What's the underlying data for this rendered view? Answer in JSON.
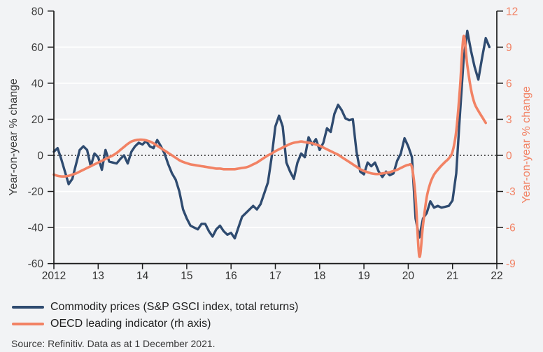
{
  "figure": {
    "background_color": "#f2f3f5",
    "grid_color": "#ffffff",
    "axis_color": "#1b1b1b",
    "x_tick_text_color": "#333333",
    "source_note": "Source: Refinitiv. Data as at 1 December 2021."
  },
  "legend": {
    "items": [
      {
        "label": "Commodity prices (S&P GSCI index, total returns)",
        "color": "#2f4b70"
      },
      {
        "label": "OECD leading indicator (rh axis)",
        "color": "#f28264"
      }
    ]
  },
  "chart_data": {
    "type": "line",
    "x_axis": {
      "range": [
        2012,
        2022
      ],
      "ticks": [
        {
          "label": "2012",
          "year": 2012
        },
        {
          "label": "13",
          "year": 2013
        },
        {
          "label": "14",
          "year": 2014
        },
        {
          "label": "15",
          "year": 2015
        },
        {
          "label": "16",
          "year": 2016
        },
        {
          "label": "17",
          "year": 2017
        },
        {
          "label": "18",
          "year": 2018
        },
        {
          "label": "19",
          "year": 2019
        },
        {
          "label": "20",
          "year": 2020
        },
        {
          "label": "21",
          "year": 2021
        },
        {
          "label": "22",
          "year": 2022
        }
      ]
    },
    "left_axis": {
      "label": "Year-on-year % change",
      "color": "#3b3b3b",
      "ticks": [
        80,
        60,
        40,
        20,
        0,
        -20,
        -40,
        -60
      ],
      "gridlines": [
        60,
        40,
        20,
        -20,
        -40
      ],
      "range": [
        -60,
        80
      ]
    },
    "right_axis": {
      "label": "Year-on-year % change",
      "color": "#f28264",
      "ticks": [
        12,
        9,
        6,
        3,
        0,
        -3,
        -6,
        -9
      ],
      "range": [
        -9,
        12
      ]
    },
    "zero_line": {
      "value": 0,
      "style": "dotted"
    },
    "series": [
      {
        "name": "Commodity prices (S&P GSCI index, total returns)",
        "axis": "left",
        "color": "#2f4b70",
        "stroke_width": 3.4,
        "smooth": false,
        "x_start_year": 2012,
        "x_step_years": 0.0833333,
        "values": [
          2,
          4,
          -2,
          -9,
          -16,
          -13,
          -5,
          3,
          5,
          3,
          -6,
          1,
          -1,
          -8,
          3,
          -3.5,
          -4,
          -4.5,
          -2,
          0,
          -4.5,
          2,
          5,
          7,
          6,
          8,
          5,
          4,
          8.5,
          5,
          1,
          -5,
          -10,
          -13.5,
          -20,
          -30,
          -35,
          -39,
          -40,
          -41,
          -38,
          -38,
          -42,
          -45,
          -41,
          -39,
          -42,
          -44,
          -43,
          -46,
          -40,
          -34,
          -32,
          -30,
          -28,
          -30,
          -27,
          -21,
          -15,
          -1,
          16,
          22,
          16,
          -4,
          -9,
          -13,
          -4,
          1,
          -1,
          10,
          6,
          9,
          3,
          7,
          15,
          13,
          23,
          28,
          25,
          20.5,
          19.5,
          20,
          2,
          -9,
          -10.5,
          -4,
          -6,
          -4,
          -9,
          -12,
          -9,
          -11,
          -10,
          -3,
          1,
          9.5,
          5,
          -1,
          -35,
          -45.5,
          -35,
          -32,
          -25.5,
          -29,
          -28,
          -29,
          -28.5,
          -28,
          -25,
          -10,
          22,
          53,
          69,
          58,
          49,
          42,
          54,
          65,
          60
        ]
      },
      {
        "name": "OECD leading indicator (rh axis)",
        "axis": "right",
        "color": "#f28264",
        "stroke_width": 3.6,
        "smooth": true,
        "x_start_year": 2012,
        "x_step_years": 0.0833333,
        "values": [
          -1.6,
          -1.7,
          -1.75,
          -1.75,
          -1.7,
          -1.6,
          -1.5,
          -1.35,
          -1.2,
          -1.05,
          -0.9,
          -0.75,
          -0.6,
          -0.45,
          -0.3,
          -0.15,
          0,
          0.2,
          0.45,
          0.7,
          0.95,
          1.15,
          1.25,
          1.3,
          1.3,
          1.25,
          1.15,
          1,
          0.8,
          0.6,
          0.4,
          0.2,
          0,
          -0.2,
          -0.4,
          -0.55,
          -0.65,
          -0.75,
          -0.8,
          -0.85,
          -0.9,
          -0.95,
          -1,
          -1.05,
          -1.1,
          -1.1,
          -1.15,
          -1.15,
          -1.15,
          -1.15,
          -1.1,
          -1.05,
          -1,
          -0.9,
          -0.75,
          -0.6,
          -0.4,
          -0.2,
          0,
          0.15,
          0.35,
          0.5,
          0.65,
          0.8,
          0.95,
          1.05,
          1.1,
          1.15,
          1.1,
          1.05,
          1,
          0.9,
          0.8,
          0.65,
          0.5,
          0.35,
          0.2,
          0.05,
          -0.15,
          -0.35,
          -0.55,
          -0.75,
          -0.95,
          -1.15,
          -1.3,
          -1.4,
          -1.5,
          -1.55,
          -1.55,
          -1.5,
          -1.45,
          -1.4,
          -1.3,
          -1.2,
          -1.05,
          -0.9,
          -0.8,
          -1,
          -3.5,
          -8.4,
          -5.8,
          -3.5,
          -2.3,
          -1.6,
          -1.2,
          -0.85,
          -0.55,
          -0.25,
          0.3,
          2,
          5.5,
          9.9,
          7.5,
          5.5,
          4.3,
          3.7,
          3.2,
          2.7
        ]
      }
    ]
  }
}
